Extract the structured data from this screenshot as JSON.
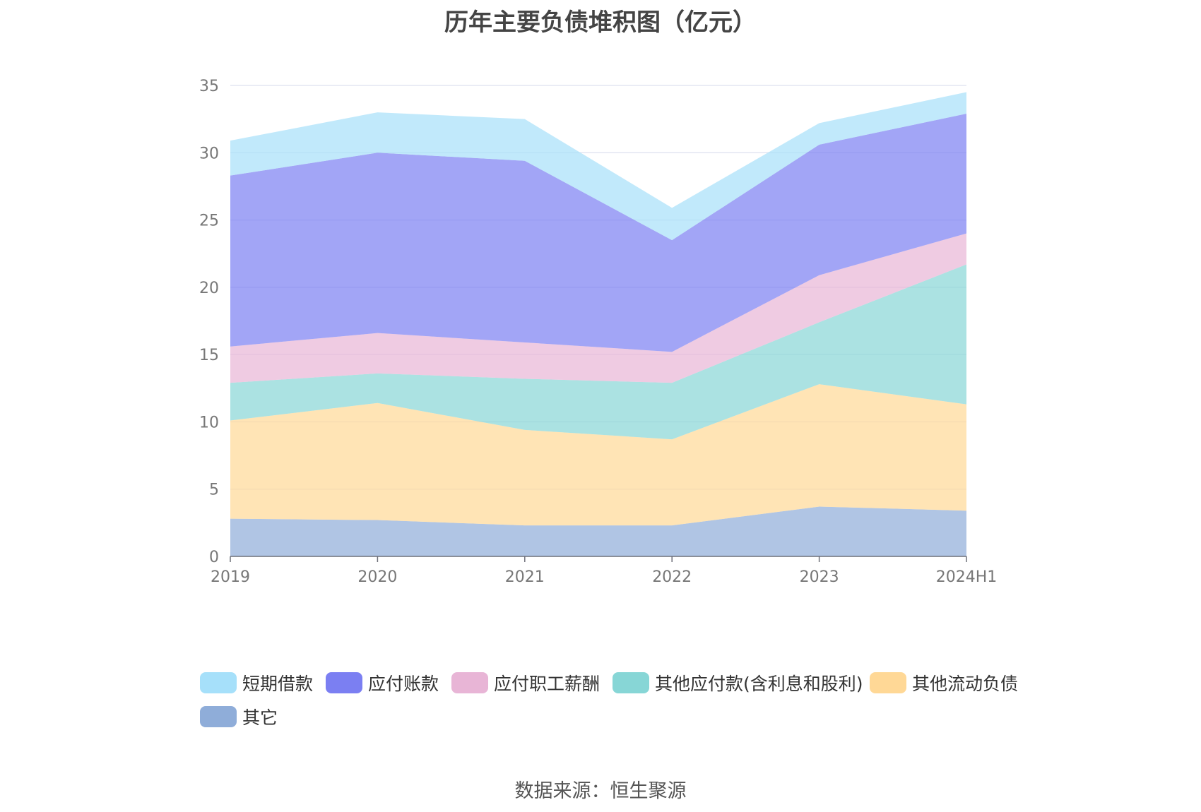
{
  "title": "历年主要负债堆积图（亿元）",
  "source": "数据来源：恒生聚源",
  "chart_data": {
    "type": "area",
    "stacked": true,
    "categories": [
      "2019",
      "2020",
      "2021",
      "2022",
      "2023",
      "2024H1"
    ],
    "ylim": [
      0,
      35
    ],
    "yticks": [
      0,
      5,
      10,
      15,
      20,
      25,
      30,
      35
    ],
    "grid": true,
    "legend_position": "bottom",
    "series": [
      {
        "name": "其它",
        "color": "#8fadd9",
        "values": [
          2.8,
          2.7,
          2.3,
          2.3,
          3.7,
          3.4
        ]
      },
      {
        "name": "其他流动负债",
        "color": "#ffd896",
        "values": [
          7.3,
          8.7,
          7.1,
          6.4,
          9.1,
          7.9
        ]
      },
      {
        "name": "其他应付款(含利息和股利)",
        "color": "#87d6d6",
        "values": [
          2.8,
          2.2,
          3.8,
          4.2,
          4.6,
          10.4
        ]
      },
      {
        "name": "应付职工薪酬",
        "color": "#e8b5d6",
        "values": [
          2.7,
          3.0,
          2.7,
          2.3,
          3.5,
          2.3
        ]
      },
      {
        "name": "应付账款",
        "color": "#7b7ff2",
        "values": [
          12.7,
          13.4,
          13.5,
          8.3,
          9.7,
          8.9
        ]
      },
      {
        "name": "短期借款",
        "color": "#a6e0fa",
        "values": [
          2.6,
          3.0,
          3.1,
          2.4,
          1.6,
          1.6
        ]
      }
    ],
    "legend_order": [
      "短期借款",
      "应付账款",
      "应付职工薪酬",
      "其他应付款(含利息和股利)",
      "其他流动负债",
      "其它"
    ]
  }
}
